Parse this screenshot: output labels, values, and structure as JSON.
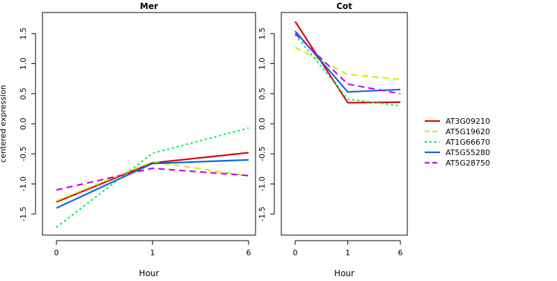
{
  "chart_data": [
    {
      "type": "line",
      "title": "Mer",
      "xlabel": "Hour",
      "ylabel": "centered expression",
      "categories": [
        "0",
        "1",
        "6"
      ],
      "ylim": [
        -1.85,
        1.85
      ],
      "yticks": [
        "-1.5",
        "-1.0",
        "-0.5",
        "0.0",
        "0.5",
        "1.0",
        "1.5"
      ],
      "series": [
        {
          "name": "AT3G09210",
          "color": "#dd0000",
          "dash": "solid",
          "values": [
            -1.3,
            -0.65,
            -0.48
          ]
        },
        {
          "name": "AT5G19620",
          "color": "#ccee00",
          "dash": "dashed",
          "values": [
            -1.28,
            -0.63,
            -0.87
          ]
        },
        {
          "name": "AT1G66670",
          "color": "#00ee66",
          "dash": "dotted",
          "values": [
            -1.72,
            -0.49,
            -0.07
          ]
        },
        {
          "name": "AT5G55280",
          "color": "#0066dd",
          "dash": "solid",
          "values": [
            -1.4,
            -0.66,
            -0.6
          ]
        },
        {
          "name": "AT5G28750",
          "color": "#cc00ee",
          "dash": "dashed",
          "values": [
            -1.1,
            -0.74,
            -0.86
          ]
        }
      ]
    },
    {
      "type": "line",
      "title": "Cot",
      "xlabel": "Hour",
      "ylabel": "",
      "categories": [
        "0",
        "1",
        "6"
      ],
      "ylim": [
        -1.85,
        1.85
      ],
      "yticks": [
        "-1.5",
        "-1.0",
        "-0.5",
        "0.0",
        "0.5",
        "1.0",
        "1.5"
      ],
      "series": [
        {
          "name": "AT3G09210",
          "color": "#dd0000",
          "dash": "solid",
          "values": [
            1.7,
            0.35,
            0.36
          ]
        },
        {
          "name": "AT5G19620",
          "color": "#ccee00",
          "dash": "dashed",
          "values": [
            1.27,
            0.82,
            0.74
          ]
        },
        {
          "name": "AT1G66670",
          "color": "#00ee66",
          "dash": "dotted",
          "values": [
            1.48,
            0.41,
            0.3
          ]
        },
        {
          "name": "AT5G55280",
          "color": "#0066dd",
          "dash": "solid",
          "values": [
            1.54,
            0.53,
            0.57
          ]
        },
        {
          "name": "AT5G28750",
          "color": "#cc00ee",
          "dash": "dashed",
          "values": [
            1.5,
            0.66,
            0.5
          ]
        }
      ]
    }
  ],
  "legend": {
    "placement": "right",
    "entries": [
      {
        "label": "AT3G09210",
        "color": "#dd0000",
        "dash": "solid"
      },
      {
        "label": "AT5G19620",
        "color": "#ccee00",
        "dash": "dashed"
      },
      {
        "label": "AT1G66670",
        "color": "#00ee66",
        "dash": "dotted"
      },
      {
        "label": "AT5G55280",
        "color": "#0066dd",
        "dash": "solid"
      },
      {
        "label": "AT5G28750",
        "color": "#cc00ee",
        "dash": "dashed"
      }
    ]
  }
}
